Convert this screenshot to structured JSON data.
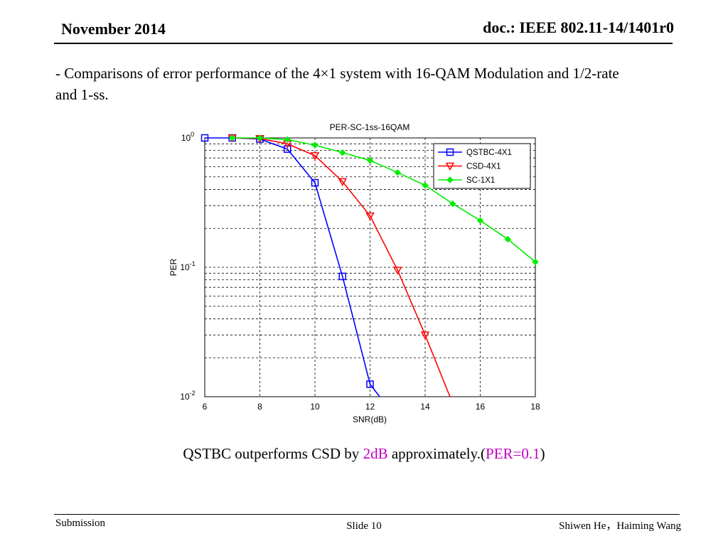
{
  "header": {
    "date": "November 2014",
    "doc": "doc.: IEEE 802.11-14/1401r0"
  },
  "body": {
    "text": "- Comparisons of error performance of the 4×1 system with 16-QAM Modulation and 1/2-rate and 1-ss."
  },
  "caption": {
    "part1": "QSTBC outperforms CSD by ",
    "highlight1": "2dB",
    "part2": " approximately.(",
    "highlight2": "PER=0.1",
    "part3": ")"
  },
  "footer": {
    "left": "Submission",
    "center": "Slide 10",
    "right": "Shiwen He，Haiming Wang"
  },
  "chart_data": {
    "type": "line",
    "title": "PER-SC-1ss-16QAM",
    "xlabel": "SNR(dB)",
    "ylabel": "PER",
    "xlim": [
      6,
      18
    ],
    "ylim": [
      0.01,
      1
    ],
    "yscale": "log",
    "xticks": [
      6,
      8,
      10,
      12,
      14,
      16,
      18
    ],
    "yticks": [
      {
        "value": 1,
        "base": "10",
        "exp": "0"
      },
      {
        "value": 0.1,
        "base": "10",
        "exp": "-1"
      },
      {
        "value": 0.01,
        "base": "10",
        "exp": "-2"
      }
    ],
    "grid": true,
    "legend_position": "top-right",
    "series": [
      {
        "name": "QSTBC-4X1",
        "color": "#0000ff",
        "marker": "square",
        "x": [
          6,
          7,
          8,
          9,
          10,
          11,
          12,
          12.35
        ],
        "y": [
          1.0,
          1.0,
          0.98,
          0.82,
          0.45,
          0.085,
          0.0125,
          0.01
        ]
      },
      {
        "name": "CSD-4X1",
        "color": "#ff0000",
        "marker": "triangle-down",
        "x": [
          7,
          8,
          9,
          10,
          11,
          12,
          13,
          14,
          14.9
        ],
        "y": [
          1.0,
          0.99,
          0.9,
          0.73,
          0.46,
          0.25,
          0.095,
          0.03,
          0.01
        ]
      },
      {
        "name": "SC-1X1",
        "color": "#00ee00",
        "marker": "diamond",
        "x": [
          7,
          8,
          9,
          10,
          11,
          12,
          13,
          14,
          15,
          16,
          17,
          18
        ],
        "y": [
          1.0,
          1.0,
          0.97,
          0.88,
          0.77,
          0.67,
          0.54,
          0.43,
          0.31,
          0.23,
          0.165,
          0.11
        ]
      }
    ],
    "markers_on": {
      "QSTBC-4X1": [
        true,
        true,
        true,
        true,
        true,
        true,
        true,
        false
      ],
      "CSD-4X1": [
        true,
        true,
        true,
        true,
        true,
        true,
        true,
        true,
        false
      ],
      "SC-1X1": [
        true,
        true,
        true,
        true,
        true,
        true,
        true,
        true,
        true,
        true,
        true,
        true
      ]
    }
  }
}
